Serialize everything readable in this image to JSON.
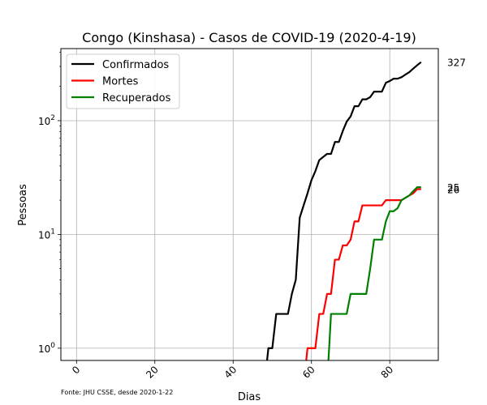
{
  "chart_data": {
    "type": "line",
    "title": "Congo (Kinshasa) - Casos de COVID-19 (2020-4-19)",
    "xlabel": "Dias",
    "ylabel": "Pessoas",
    "yscale": "log",
    "xlim": [
      -4,
      92.4
    ],
    "ylim": [
      0.78,
      430
    ],
    "grid": true,
    "legend_position": "upper-left",
    "source_note": "Fonte: JHU CSSE, desde 2020-1-22",
    "x_ticks": [
      0,
      20,
      40,
      60,
      80
    ],
    "x_tick_labels": [
      "0",
      "20",
      "40",
      "60",
      "80"
    ],
    "y_ticks": [
      1,
      10,
      100
    ],
    "y_tick_base": "10",
    "y_tick_exponents": [
      "0",
      "1",
      "2"
    ],
    "end_labels": [
      "327",
      "26",
      "25"
    ],
    "series": [
      {
        "name": "Confirmados",
        "color": "#000000",
        "x": [
          49,
          50,
          51,
          52,
          53,
          54,
          55,
          56,
          57,
          58,
          59,
          60,
          61,
          62,
          63,
          64,
          65,
          66,
          67,
          68,
          69,
          70,
          71,
          72,
          73,
          74,
          75,
          76,
          77,
          78,
          79,
          80,
          81,
          82,
          83,
          84,
          85,
          86,
          87,
          88
        ],
        "values": [
          1,
          1,
          2,
          2,
          2,
          2,
          3,
          4,
          14,
          18,
          23,
          30,
          36,
          45,
          48,
          51,
          51,
          65,
          65,
          81,
          98,
          109,
          134,
          134,
          154,
          154,
          161,
          180,
          180,
          180,
          215,
          223,
          234,
          234,
          241,
          254,
          267,
          287,
          307,
          327
        ]
      },
      {
        "name": "Mortes",
        "color": "#ff0000",
        "x": [
          59,
          60,
          61,
          62,
          63,
          64,
          65,
          66,
          67,
          68,
          69,
          70,
          71,
          72,
          73,
          74,
          75,
          76,
          77,
          78,
          79,
          80,
          81,
          82,
          83,
          84,
          85,
          86,
          87,
          88
        ],
        "values": [
          1,
          1,
          1,
          2,
          2,
          3,
          3,
          6,
          6,
          8,
          8,
          9,
          13,
          13,
          18,
          18,
          18,
          18,
          18,
          18,
          20,
          20,
          20,
          20,
          20,
          21,
          22,
          23,
          25,
          25
        ]
      },
      {
        "name": "Recuperados",
        "color": "#008000",
        "x": [
          65,
          66,
          67,
          68,
          69,
          70,
          71,
          72,
          73,
          74,
          75,
          76,
          77,
          78,
          79,
          80,
          81,
          82,
          83,
          84,
          85,
          86,
          87,
          88
        ],
        "values": [
          2,
          2,
          2,
          2,
          2,
          3,
          3,
          3,
          3,
          3,
          5,
          9,
          9,
          9,
          13,
          16,
          16,
          17,
          20,
          21,
          22,
          24,
          26,
          26
        ]
      }
    ]
  }
}
